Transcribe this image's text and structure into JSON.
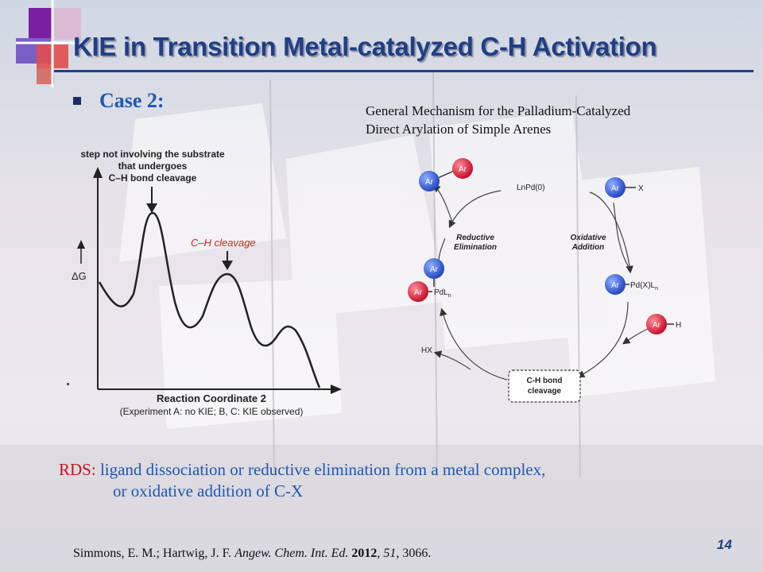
{
  "title": "KIE in Transition Metal-catalyzed C-H Activation",
  "case_label": "Case 2:",
  "mechanism_title": [
    "General Mechanism for the Palladium-Catalyzed",
    "Direct  Arylation of Simple Arenes"
  ],
  "energy_diagram": {
    "annotation_top": [
      "step not involving the substrate",
      "that undergoes",
      "C–H bond cleavage"
    ],
    "annotation_ch": "C–H cleavage",
    "y_axis_label": "ΔG",
    "x_axis_label": "Reaction Coordinate 2",
    "x_axis_note": "(Experiment A: no KIE; B, C: KIE observed)"
  },
  "cycle": {
    "catalyst": "LnPd(0)",
    "oxidative_addition": [
      "Oxidative",
      "Addition"
    ],
    "reductive_elimination": [
      "Reductive",
      "Elimination"
    ],
    "ar_label": "Ar",
    "x_label": "X",
    "h_label": "H",
    "pd_x_label": "Pd(X)L",
    "pd_x_sub": "n",
    "pdl_label": "PdL",
    "pdl_sub": "n",
    "hx_label": "HX",
    "ch_box": [
      "C-H bond",
      "cleavage"
    ],
    "colors": {
      "ar_blue": "#3a63d6",
      "ar_red": "#e0243a"
    }
  },
  "rds": {
    "label": "RDS:",
    "line1": "ligand dissociation or reductive elimination from a metal complex,",
    "line2": "or oxidative addition of C-X"
  },
  "citation": {
    "authors": "Simmons, E. M.; Hartwig, J. F. ",
    "journal": "Angew. Chem. Int. Ed.",
    "year": "2012",
    "volume": "51",
    "pages": ", 3066."
  },
  "page_number": "14"
}
